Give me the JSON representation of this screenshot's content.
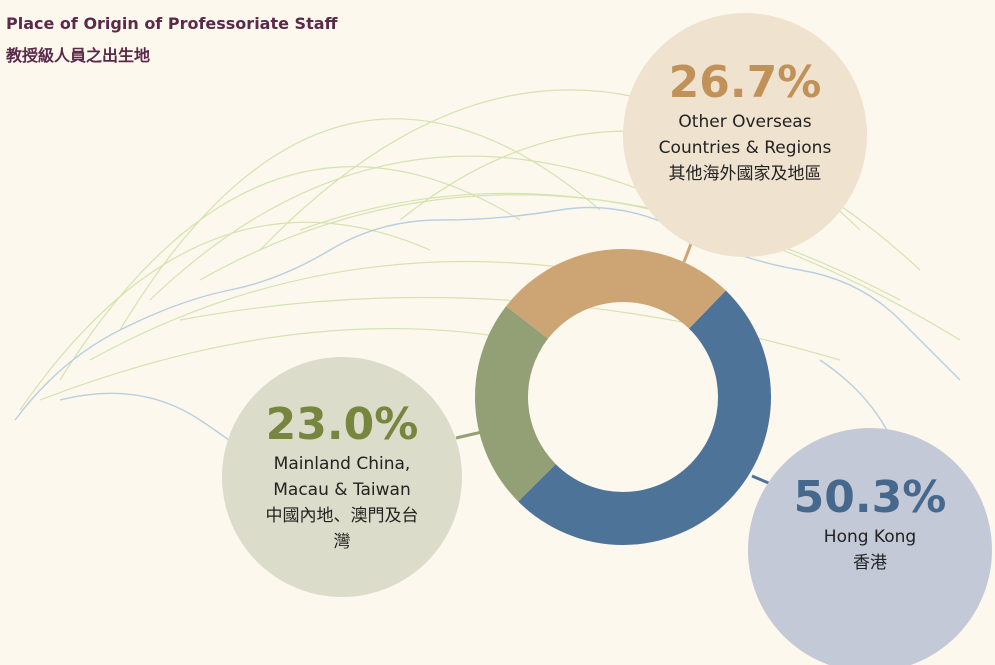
{
  "title": "Place of Origin of Professoriate Staff",
  "subtitle": "教授級人員之出生地",
  "chart_data": {
    "type": "donut",
    "categories": [
      "Hong Kong",
      "Mainland China, Macau & Taiwan",
      "Other Overseas Countries & Regions"
    ],
    "categories_zh": [
      "香港",
      "中國內地、澳門及台灣",
      "其他海外國家及地區"
    ],
    "values": [
      50.3,
      23.0,
      26.7
    ],
    "value_labels": [
      "50.3%",
      "23.0%",
      "26.7%"
    ],
    "colors": [
      "#4e7399",
      "#93a075",
      "#cda473"
    ],
    "bubble_colors": [
      "#c4c9d7",
      "#dcdccb",
      "#efe2cf"
    ],
    "label_colors": [
      "#46688c",
      "#77863f",
      "#c0925a"
    ]
  }
}
